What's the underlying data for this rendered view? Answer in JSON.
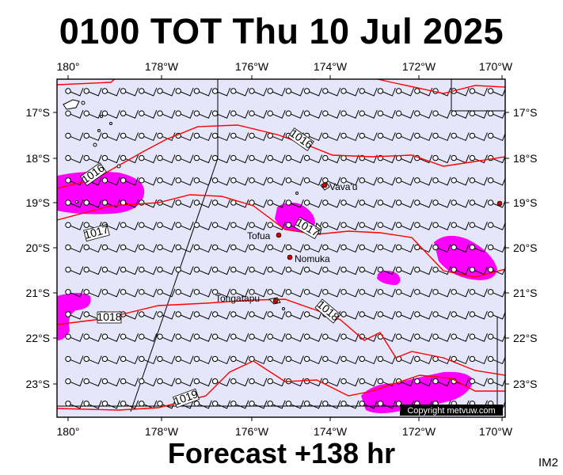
{
  "title": "0100 TOT Thu 10 Jul 2025",
  "footer": "Forecast +138 hr",
  "tag": "IM2",
  "copyright": "Copyright metvuw.com",
  "lon_labels": [
    "180°",
    "178°W",
    "176°W",
    "174°W",
    "172°W",
    "170°W"
  ],
  "lat_labels": [
    "17°S",
    "18°S",
    "19°S",
    "20°S",
    "21°S",
    "22°S",
    "23°S"
  ],
  "isobar_labels": [
    "1016",
    "1016",
    "1017",
    "1017",
    "1018",
    "1018",
    "1019"
  ],
  "places": [
    "Vava'u",
    "Tofua",
    "Nomuka",
    "Tongatapu"
  ],
  "colors": {
    "ocean": "#e6e6fa",
    "isobar": "#ff0000",
    "rain": "#ff00ff",
    "land": "#000000",
    "place": "#cc0000"
  }
}
